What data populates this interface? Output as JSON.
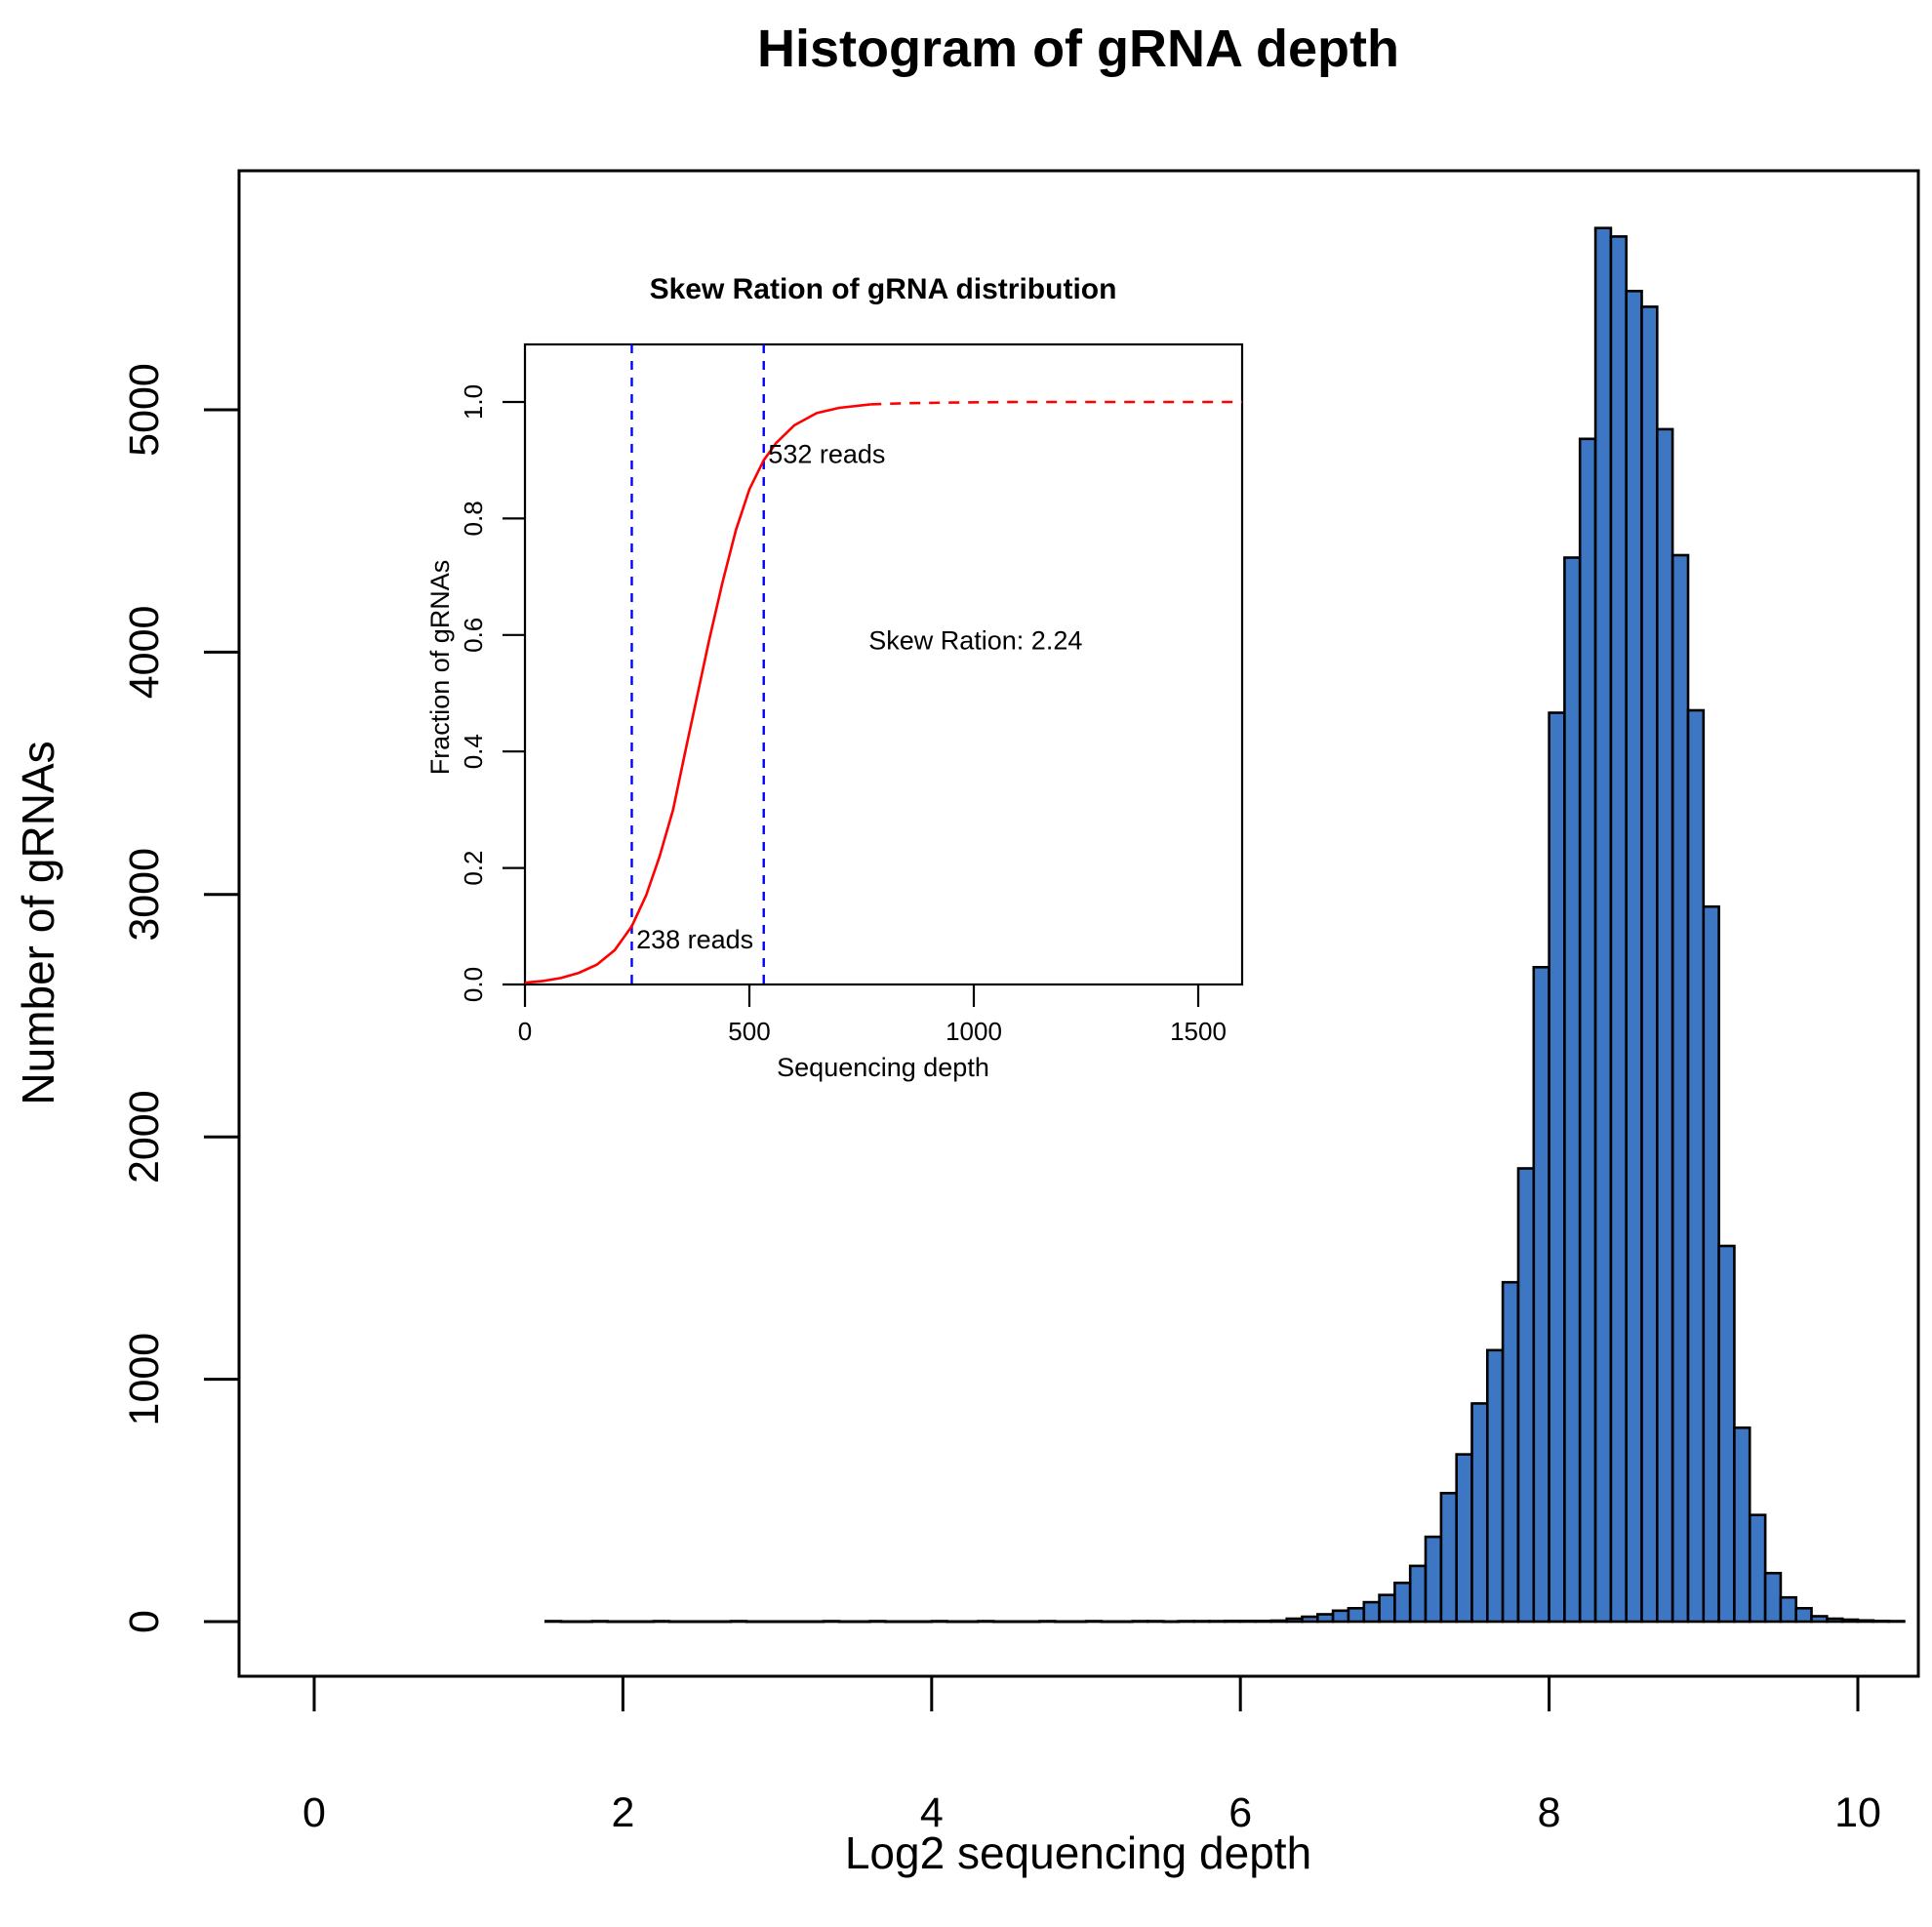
{
  "figure": {
    "title": "Histogram of gRNA depth",
    "background": "#ffffff"
  },
  "chart_data": [
    {
      "id": "main-histogram",
      "type": "bar",
      "title": "Histogram of gRNA depth",
      "xlabel": "Log2 sequencing depth",
      "ylabel": "Number of gRNAs",
      "bar_color": "#3D76C2",
      "bar_border_color": "#000000",
      "grid": "off",
      "bin_start": 1.5,
      "bin_width": 0.1,
      "counts": [
        2,
        1,
        1,
        2,
        1,
        1,
        1,
        2,
        1,
        1,
        1,
        1,
        2,
        1,
        1,
        1,
        1,
        1,
        2,
        1,
        1,
        2,
        1,
        1,
        1,
        2,
        1,
        1,
        2,
        1,
        1,
        1,
        2,
        1,
        1,
        2,
        1,
        1,
        2,
        2,
        1,
        2,
        2,
        2,
        3,
        3,
        3,
        4,
        12,
        20,
        30,
        45,
        55,
        80,
        110,
        160,
        230,
        350,
        530,
        690,
        900,
        1120,
        1400,
        1870,
        2700,
        3750,
        4390,
        4880,
        5750,
        5715,
        5490,
        5425,
        4920,
        4400,
        3760,
        2950,
        1550,
        800,
        440,
        200,
        100,
        55,
        22,
        12,
        8,
        5,
        3,
        2
      ],
      "x_ticks": [
        0,
        2,
        4,
        6,
        8,
        10
      ],
      "y_ticks": [
        0,
        1000,
        2000,
        3000,
        4000,
        5000
      ],
      "xlim": [
        -0.5,
        10.4
      ],
      "ylim": [
        0,
        5986
      ]
    },
    {
      "id": "inset-cdf",
      "type": "line",
      "title": "Skew Ration of gRNA distribution",
      "xlabel": "Sequencing depth",
      "ylabel": "Fraction of gRNAs",
      "line_color": "#FF0000",
      "threshold_line_color": "#0000FF",
      "grid": "off",
      "x_ticks": [
        0,
        500,
        1000,
        1500
      ],
      "y_ticks": [
        0.0,
        0.2,
        0.4,
        0.6,
        0.8,
        1.0
      ],
      "xlim": [
        0,
        1598
      ],
      "ylim": [
        0,
        1.1
      ],
      "threshold_x_values": [
        238,
        532
      ],
      "solid_points": [
        [
          0,
          0.003
        ],
        [
          40,
          0.006
        ],
        [
          80,
          0.011
        ],
        [
          120,
          0.02
        ],
        [
          160,
          0.034
        ],
        [
          200,
          0.059
        ],
        [
          238,
          0.1
        ],
        [
          270,
          0.153
        ],
        [
          300,
          0.22
        ],
        [
          330,
          0.3
        ],
        [
          360,
          0.41
        ],
        [
          385,
          0.5
        ],
        [
          410,
          0.59
        ],
        [
          440,
          0.69
        ],
        [
          470,
          0.78
        ],
        [
          500,
          0.85
        ],
        [
          532,
          0.9
        ],
        [
          560,
          0.93
        ],
        [
          600,
          0.96
        ],
        [
          650,
          0.981
        ],
        [
          700,
          0.99
        ],
        [
          770,
          0.996
        ]
      ],
      "dashed_points": [
        [
          770,
          0.996
        ],
        [
          850,
          0.998
        ],
        [
          950,
          0.999
        ],
        [
          1100,
          1.0
        ],
        [
          1300,
          1.0
        ],
        [
          1598,
          1.0
        ]
      ],
      "annotations": [
        {
          "text": "532 reads",
          "x": 542,
          "y": 0.895,
          "anchor": "start"
        },
        {
          "text": "238 reads",
          "x": 248,
          "y": 0.062,
          "anchor": "start"
        },
        {
          "text": "Skew Ration: 2.24",
          "x": 1004,
          "y": 0.575,
          "anchor": "middle"
        }
      ]
    }
  ]
}
